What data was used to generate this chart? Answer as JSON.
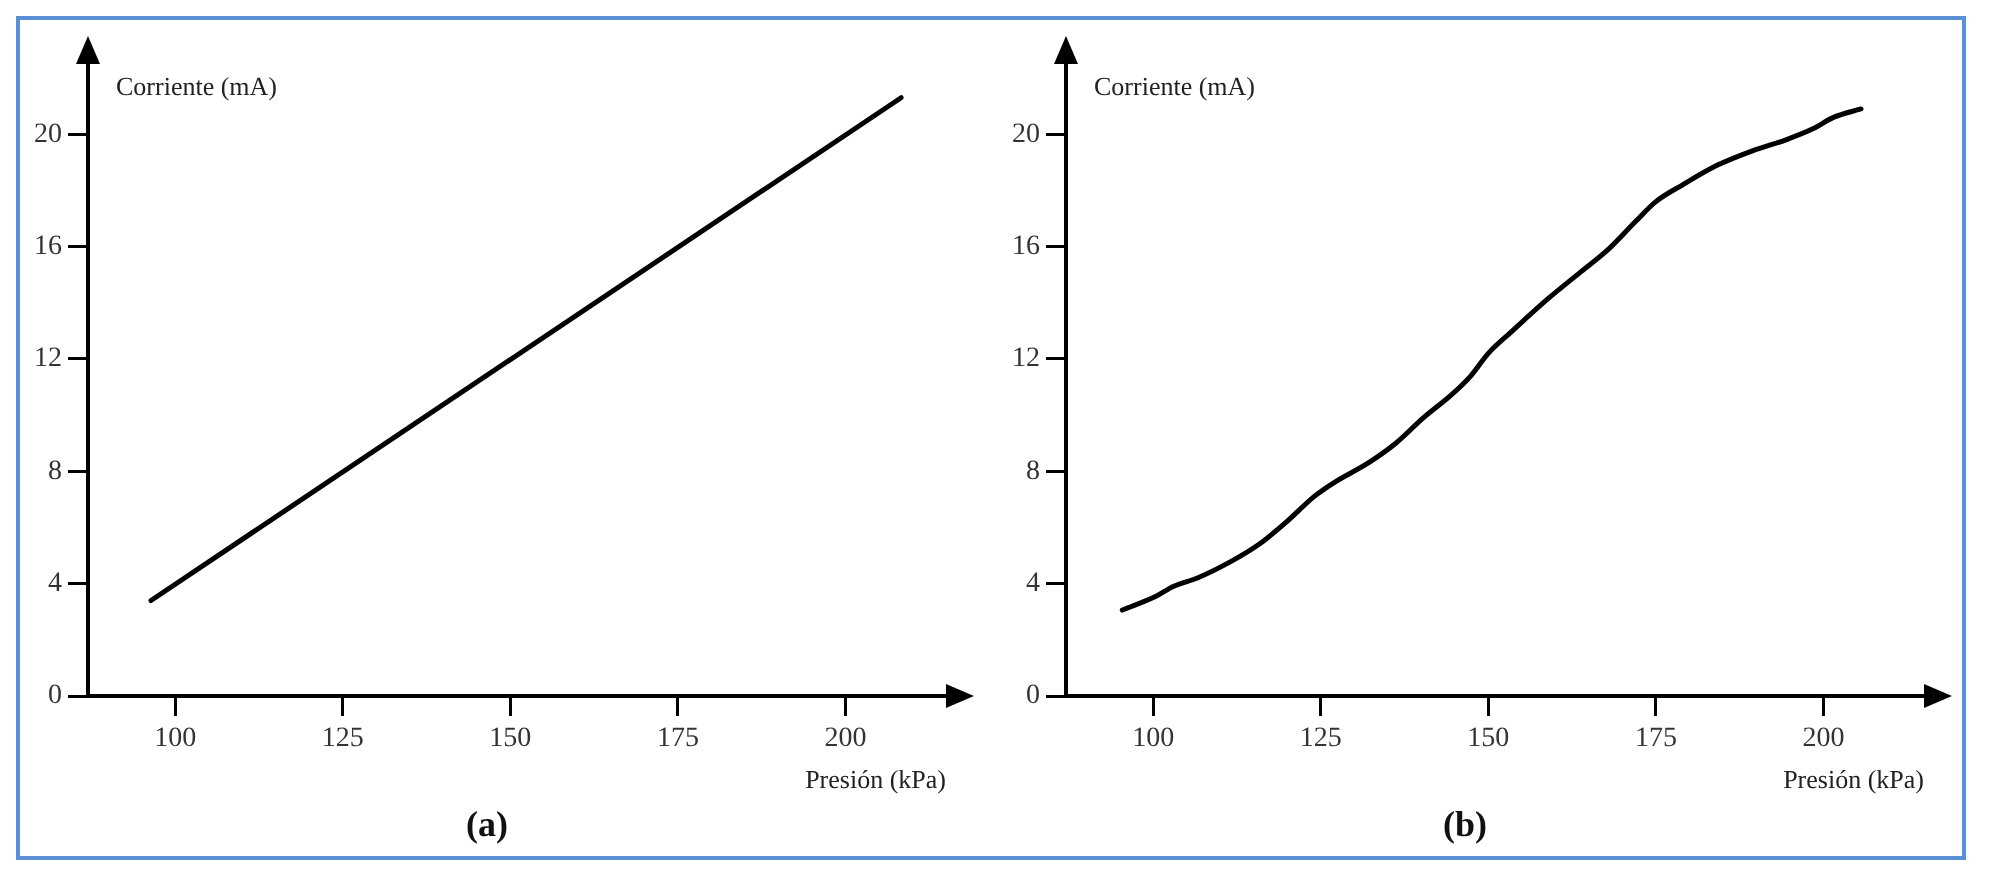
{
  "chart_data": [
    {
      "type": "line",
      "title": "(a)",
      "xlabel": "Presión (kPa)",
      "ylabel": "Corriente (mA)",
      "x": [
        96.4,
        208.3
      ],
      "series": [
        {
          "color": "#000000",
          "values": [
            3.4,
            21.3
          ]
        }
      ],
      "xlim": [
        87,
        215
      ],
      "xticks": [
        100,
        125,
        150,
        175,
        200
      ],
      "ylim": [
        0,
        22.5
      ],
      "yticks": [
        0,
        4,
        8,
        12,
        16,
        20
      ],
      "grid": false,
      "legend": false
    },
    {
      "type": "line",
      "title": "(b)",
      "xlabel": "Presión (kPa)",
      "ylabel": "Corriente (mA)",
      "x": [
        95.4,
        100.5,
        103,
        106.6,
        111.7,
        115.8,
        119.9,
        124,
        127,
        132.1,
        136.2,
        140.3,
        144.4,
        147.4,
        150,
        153.6,
        158.7,
        163.8,
        167.9,
        172,
        175,
        179,
        184.2,
        189.3,
        194.4,
        198.5,
        201.5,
        205.6
      ],
      "series": [
        {
          "color": "#000000",
          "values": [
            3.06,
            3.56,
            3.9,
            4.2,
            4.8,
            5.4,
            6.2,
            7.1,
            7.6,
            8.3,
            9.0,
            9.9,
            10.7,
            11.4,
            12.2,
            13.0,
            14.1,
            15.1,
            15.9,
            16.9,
            17.6,
            18.2,
            18.9,
            19.4,
            19.8,
            20.2,
            20.6,
            20.9
          ]
        }
      ],
      "xlim": [
        87,
        215
      ],
      "xticks": [
        100,
        125,
        150,
        175,
        200
      ],
      "ylim": [
        0,
        22.5
      ],
      "yticks": [
        0,
        4,
        8,
        12,
        16,
        20
      ],
      "grid": false,
      "legend": false
    }
  ]
}
